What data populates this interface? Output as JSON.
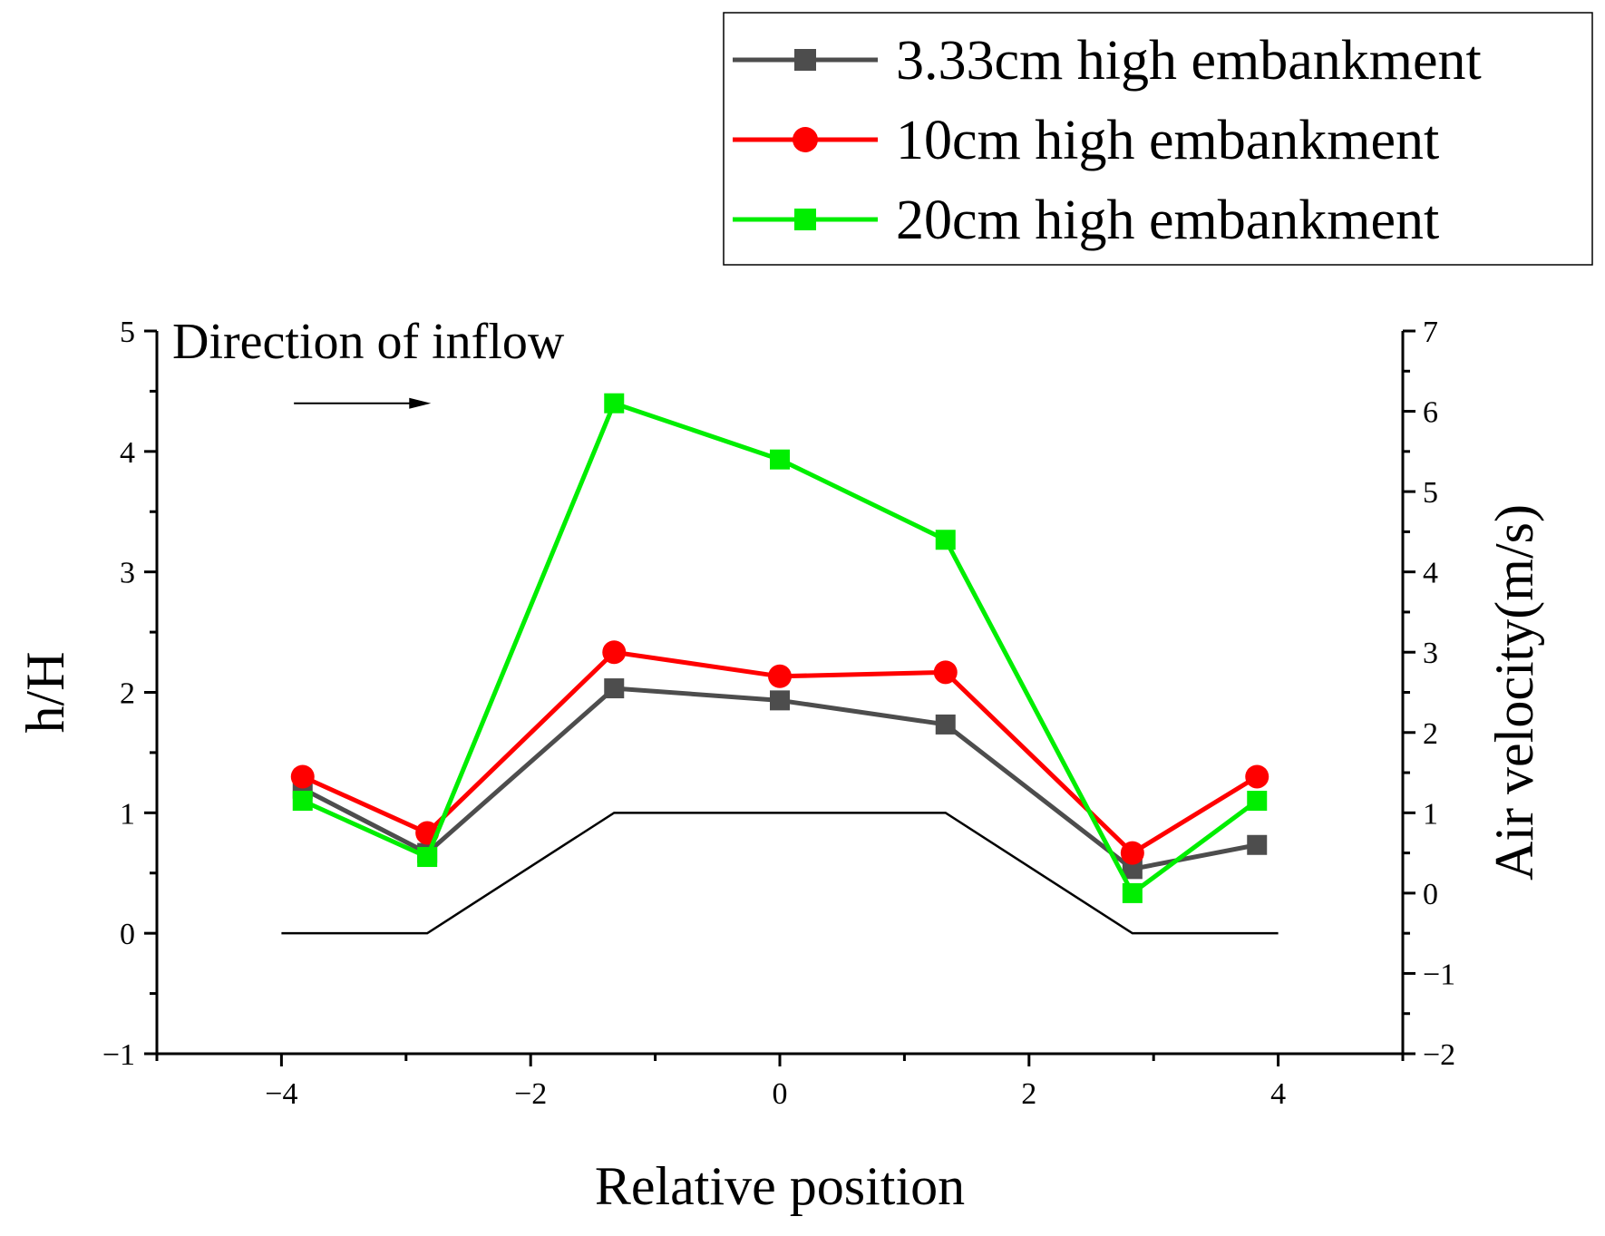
{
  "chart_data": {
    "type": "line",
    "title": "",
    "xlabel": "Relative position",
    "ylabel": "h/H",
    "y2label": "Air velocity(m/s)",
    "xlim": [
      -5,
      5
    ],
    "ylim": [
      -1,
      5
    ],
    "y2lim": [
      -2,
      7
    ],
    "x_ticks": [
      -4,
      -2,
      0,
      2,
      4
    ],
    "y_ticks": [
      -1,
      0,
      1,
      2,
      3,
      4,
      5
    ],
    "y2_ticks": [
      -2,
      -1,
      0,
      1,
      2,
      3,
      4,
      5,
      6,
      7
    ],
    "grid": false,
    "legend_position": "top-right",
    "annotation": {
      "text": "Direction of inflow",
      "arrow_x": [
        -3.9,
        -2.8
      ],
      "arrow_y": 4.4
    },
    "embankment_profile": {
      "x": [
        -4.0,
        -2.83,
        -1.33,
        1.33,
        2.83,
        4.0
      ],
      "y": [
        0,
        0,
        1,
        1,
        0,
        0
      ]
    },
    "series": [
      {
        "name": "3.33cm high embankment",
        "axis": "right",
        "marker": "square",
        "color": "#4d4d4d",
        "x": [
          -3.83,
          -2.83,
          -1.33,
          0,
          1.33,
          2.83,
          3.83
        ],
        "y": [
          1.3,
          0.5,
          2.55,
          2.4,
          2.1,
          0.3,
          0.6
        ]
      },
      {
        "name": "10cm high embankment",
        "axis": "right",
        "marker": "circle",
        "color": "#ff0000",
        "x": [
          -3.83,
          -2.83,
          -1.33,
          0,
          1.33,
          2.83,
          3.83
        ],
        "y": [
          1.45,
          0.75,
          3.0,
          2.7,
          2.75,
          0.5,
          1.45
        ]
      },
      {
        "name": "20cm high embankment",
        "axis": "right",
        "marker": "square",
        "color": "#00ee00",
        "x": [
          -3.83,
          -2.83,
          -1.33,
          0,
          1.33,
          2.83,
          3.83
        ],
        "y": [
          1.15,
          0.45,
          6.1,
          5.4,
          4.4,
          0.0,
          1.15
        ]
      }
    ]
  }
}
